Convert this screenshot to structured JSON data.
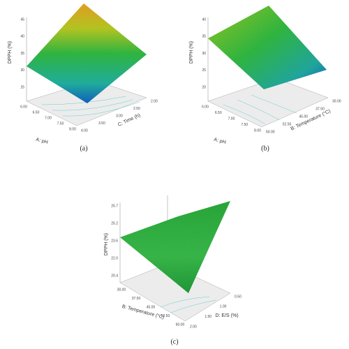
{
  "panels": [
    {
      "caption": "(a)",
      "z_title": "DPPH (%)",
      "z_ticks": [
        "45",
        "40",
        "35",
        "30",
        "25"
      ],
      "x_title": "A: pH",
      "x_ticks": [
        "6.00",
        "6.50",
        "7.00",
        "7.50",
        "8.00"
      ],
      "y_title": "C: Time (h)",
      "y_ticks": [
        "4.00",
        "3.50",
        "3.00",
        "2.50",
        "2.00"
      ]
    },
    {
      "caption": "(b)",
      "z_title": "DPPH (%)",
      "z_ticks": [
        "40",
        "35",
        "30",
        "25",
        "20"
      ],
      "x_title": "A: pH",
      "x_ticks": [
        "6.00",
        "6.50",
        "7.00",
        "7.50",
        "8.00"
      ],
      "y_title": "B: Temperature (°C)",
      "y_ticks": [
        "60.00",
        "52.50",
        "45.00",
        "37.50",
        "30.00"
      ]
    },
    {
      "caption": "(c)",
      "z_title": "DPPH (%)",
      "z_ticks": [
        "26.7",
        "25.2",
        "23.6",
        "22.0",
        "20.4"
      ],
      "x_title": "B: Temperature (°C)",
      "x_ticks": [
        "30.00",
        "37.50",
        "45.00",
        "52.50",
        "60.00"
      ],
      "y_title": "D: E/S (%)",
      "y_ticks": [
        "2.00",
        "1.50",
        "1.00",
        "0.50"
      ]
    }
  ]
}
